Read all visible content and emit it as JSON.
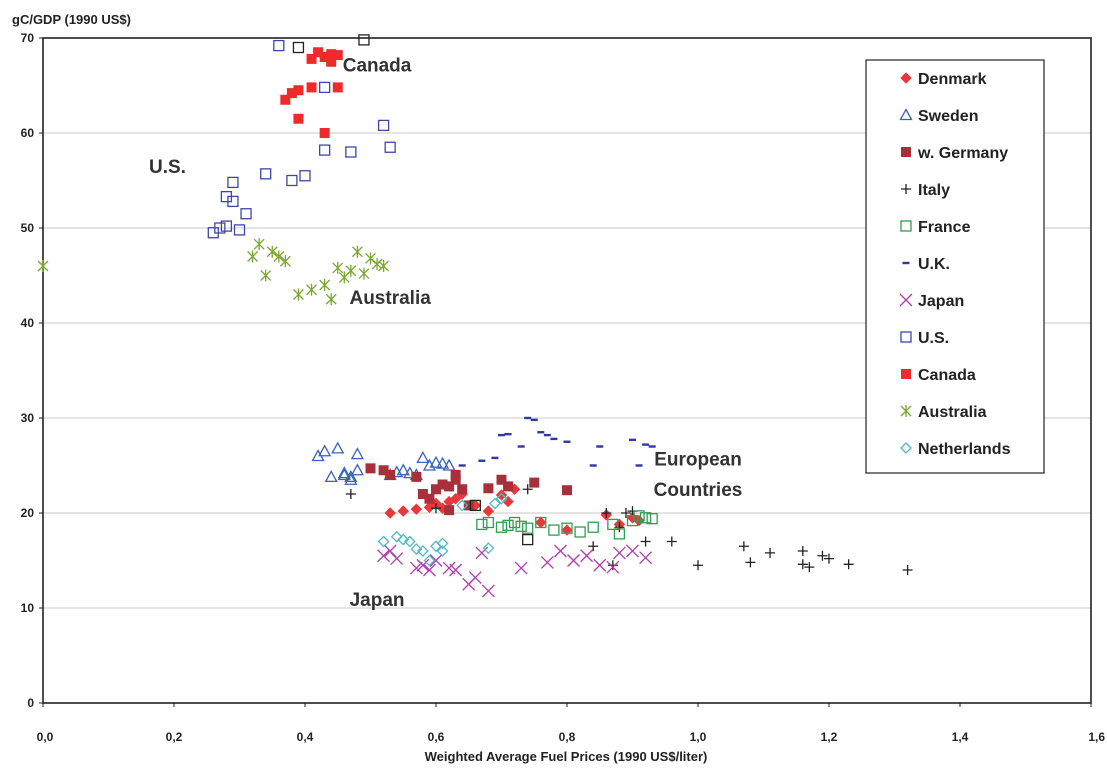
{
  "chart_data": {
    "type": "scatter",
    "ylabel": "gC/GDP (1990 US$)",
    "xlabel": "Weighted Average Fuel Prices (1990 US$/liter)",
    "xlim": [
      0,
      1.6
    ],
    "ylim": [
      0,
      70
    ],
    "x_ticks": [
      "0,0",
      "0,2",
      "0,4",
      "0,6",
      "0,8",
      "1,0",
      "1,2",
      "1,4",
      "1,6"
    ],
    "y_ticks": [
      "0",
      "10",
      "20",
      "30",
      "40",
      "50",
      "60",
      "70"
    ],
    "grid": "horizontal",
    "legend_position": "top-right",
    "annotations": [
      {
        "text": "Canada",
        "x": 0.51,
        "y": 66.5
      },
      {
        "text": "U.S.",
        "x": 0.19,
        "y": 55.8
      },
      {
        "text": "Australia",
        "x": 0.53,
        "y": 42.0
      },
      {
        "text": "European",
        "x": 1.0,
        "y": 25.0
      },
      {
        "text": "Countries",
        "x": 1.0,
        "y": 21.8
      },
      {
        "text": "Japan",
        "x": 0.51,
        "y": 10.2
      }
    ],
    "series": [
      {
        "name": "Denmark",
        "marker": "diamond-filled",
        "color": "#e8383d",
        "x": [
          0.53,
          0.55,
          0.57,
          0.59,
          0.6,
          0.61,
          0.62,
          0.63,
          0.64,
          0.66,
          0.68,
          0.7,
          0.71,
          0.72,
          0.76,
          0.8,
          0.86,
          0.88,
          0.9,
          0.91
        ],
        "y": [
          20.0,
          20.2,
          20.4,
          20.6,
          21.0,
          20.5,
          21.2,
          21.5,
          22.0,
          20.8,
          20.2,
          21.9,
          21.2,
          22.5,
          19.0,
          18.2,
          19.8,
          18.8,
          19.5,
          19.2
        ]
      },
      {
        "name": "Sweden",
        "marker": "triangle-open",
        "color": "#3a63b8",
        "x": [
          0.42,
          0.43,
          0.44,
          0.45,
          0.46,
          0.46,
          0.47,
          0.47,
          0.48,
          0.48,
          0.53,
          0.54,
          0.55,
          0.56,
          0.57,
          0.58,
          0.59,
          0.6,
          0.61,
          0.62
        ],
        "y": [
          26.0,
          26.5,
          23.8,
          26.8,
          24.2,
          24.0,
          23.8,
          23.5,
          24.5,
          26.2,
          24.0,
          24.3,
          24.5,
          24.2,
          24.0,
          25.8,
          25.0,
          25.3,
          25.2,
          25.0
        ]
      },
      {
        "name": "w. Germany",
        "marker": "square-filled",
        "color": "#a7303a",
        "x": [
          0.5,
          0.52,
          0.53,
          0.57,
          0.58,
          0.59,
          0.6,
          0.61,
          0.62,
          0.62,
          0.63,
          0.63,
          0.64,
          0.65,
          0.68,
          0.7,
          0.71,
          0.75,
          0.8
        ],
        "y": [
          24.7,
          24.5,
          24.0,
          23.8,
          22.0,
          21.5,
          22.5,
          23.0,
          20.3,
          22.8,
          23.5,
          24.0,
          22.5,
          20.8,
          22.6,
          23.5,
          22.8,
          23.2,
          22.4
        ]
      },
      {
        "name": "Italy",
        "marker": "plus",
        "color": "#222222",
        "x": [
          0.47,
          0.6,
          0.74,
          0.84,
          0.86,
          0.87,
          0.88,
          0.89,
          0.9,
          0.92,
          0.96,
          1.0,
          1.07,
          1.08,
          1.11,
          1.16,
          1.16,
          1.17,
          1.19,
          1.2,
          1.23,
          1.32
        ],
        "y": [
          22.0,
          20.5,
          22.5,
          16.5,
          20.0,
          14.5,
          18.5,
          20.0,
          20.2,
          17.0,
          17.0,
          14.5,
          16.5,
          14.8,
          15.8,
          16.0,
          14.6,
          14.3,
          15.5,
          15.2,
          14.6,
          14.0
        ]
      },
      {
        "name": "France",
        "marker": "square-open",
        "color": "#2f9e52",
        "x": [
          0.67,
          0.68,
          0.7,
          0.71,
          0.72,
          0.73,
          0.74,
          0.76,
          0.78,
          0.8,
          0.82,
          0.84,
          0.87,
          0.88,
          0.9,
          0.91,
          0.92,
          0.93
        ],
        "y": [
          18.8,
          19.0,
          18.5,
          18.7,
          19.0,
          18.6,
          18.4,
          19.0,
          18.2,
          18.4,
          18.0,
          18.5,
          18.8,
          17.8,
          19.2,
          19.7,
          19.5,
          19.4
        ]
      },
      {
        "name": "U.K.",
        "marker": "dash",
        "color": "#2e3a9e",
        "x": [
          0.64,
          0.67,
          0.69,
          0.7,
          0.71,
          0.73,
          0.74,
          0.75,
          0.76,
          0.77,
          0.78,
          0.8,
          0.84,
          0.85,
          0.9,
          0.91,
          0.92,
          0.93
        ],
        "y": [
          25.0,
          25.5,
          25.8,
          28.2,
          28.3,
          27.0,
          30.0,
          29.8,
          28.5,
          28.2,
          27.8,
          27.5,
          25.0,
          27.0,
          27.7,
          25.0,
          27.2,
          27.0
        ]
      },
      {
        "name": "Japan",
        "marker": "x",
        "color": "#b03cae",
        "x": [
          0.52,
          0.53,
          0.54,
          0.57,
          0.58,
          0.59,
          0.6,
          0.62,
          0.63,
          0.65,
          0.66,
          0.67,
          0.68,
          0.73,
          0.77,
          0.79,
          0.81,
          0.83,
          0.85,
          0.87,
          0.88,
          0.9,
          0.92
        ],
        "y": [
          15.5,
          16.0,
          15.2,
          14.2,
          14.5,
          14.0,
          15.0,
          14.2,
          14.0,
          12.5,
          13.2,
          15.8,
          11.8,
          14.2,
          14.8,
          16.0,
          15.0,
          15.5,
          14.5,
          14.3,
          15.8,
          16.0,
          15.3
        ]
      },
      {
        "name": "U.S.",
        "marker": "square-open",
        "color": "#3d47a8",
        "x": [
          0.26,
          0.27,
          0.28,
          0.28,
          0.29,
          0.29,
          0.3,
          0.31,
          0.34,
          0.36,
          0.38,
          0.4,
          0.43,
          0.43,
          0.47,
          0.52,
          0.53
        ],
        "y": [
          49.5,
          50.0,
          50.2,
          53.3,
          52.8,
          54.8,
          49.8,
          51.5,
          55.7,
          69.2,
          55.0,
          55.5,
          58.2,
          64.8,
          58.0,
          60.8,
          58.5
        ]
      },
      {
        "name": "Canada",
        "marker": "square-filled",
        "color": "#ee2a2a",
        "x": [
          0.37,
          0.38,
          0.39,
          0.39,
          0.41,
          0.41,
          0.42,
          0.43,
          0.43,
          0.44,
          0.44,
          0.45,
          0.45
        ],
        "y": [
          63.5,
          64.2,
          61.5,
          64.5,
          64.8,
          67.8,
          68.5,
          60.0,
          68.0,
          67.5,
          68.3,
          64.8,
          68.2
        ]
      },
      {
        "name": "Australia",
        "marker": "asterisk",
        "color": "#7aa82f",
        "x": [
          0.0,
          0.32,
          0.33,
          0.34,
          0.35,
          0.36,
          0.37,
          0.39,
          0.41,
          0.43,
          0.44,
          0.45,
          0.46,
          0.47,
          0.48,
          0.49,
          0.5,
          0.51,
          0.52
        ],
        "y": [
          46.0,
          47.0,
          48.3,
          45.0,
          47.5,
          47.0,
          46.5,
          43.0,
          43.5,
          44.0,
          42.5,
          45.8,
          44.8,
          45.5,
          47.5,
          45.2,
          46.8,
          46.2,
          46.0
        ]
      },
      {
        "name": "Netherlands",
        "marker": "diamond-open",
        "color": "#52b9c2",
        "x": [
          0.52,
          0.54,
          0.55,
          0.56,
          0.57,
          0.58,
          0.59,
          0.6,
          0.61,
          0.61,
          0.64,
          0.68,
          0.69,
          0.7
        ],
        "y": [
          17.0,
          17.5,
          17.2,
          17.0,
          16.2,
          16.0,
          15.0,
          16.5,
          16.0,
          16.8,
          20.8,
          16.3,
          21.0,
          21.5
        ]
      },
      {
        "name": "",
        "marker": "square-open",
        "color": "#222222",
        "x": [
          0.39,
          0.49,
          0.74,
          0.66
        ],
        "y": [
          69.0,
          69.8,
          17.2,
          20.8
        ]
      }
    ]
  }
}
